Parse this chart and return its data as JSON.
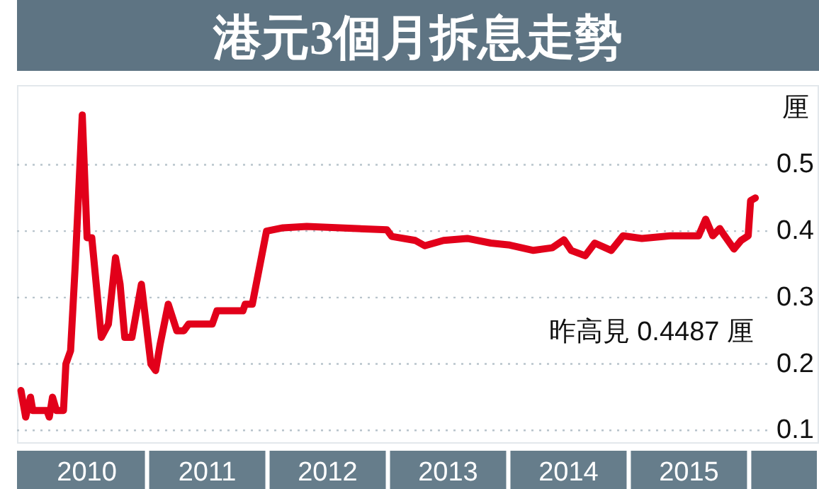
{
  "chart_data": {
    "type": "line",
    "title": "港元3個月拆息走勢",
    "ylabel": "厘",
    "annotations": [
      "昨高見 0.4487 厘"
    ],
    "xlim": [
      2009.92,
      2016.58
    ],
    "ylim": [
      0.08,
      0.62
    ],
    "xticks": [
      {
        "value": 2010.5,
        "label": "2010"
      },
      {
        "value": 2011.5,
        "label": "2011"
      },
      {
        "value": 2012.5,
        "label": "2012"
      },
      {
        "value": 2013.5,
        "label": "2013"
      },
      {
        "value": 2014.5,
        "label": "2014"
      },
      {
        "value": 2015.5,
        "label": "2015"
      }
    ],
    "yticks": [
      0.1,
      0.2,
      0.3,
      0.4,
      0.5
    ],
    "grid": "y",
    "marker": "none",
    "line_style": "solid",
    "series": [
      {
        "color": "#e2001a",
        "x": [
          2009.953,
          2009.992,
          2010.032,
          2010.051,
          2010.168,
          2010.188,
          2010.215,
          2010.247,
          2010.306,
          2010.326,
          2010.365,
          2010.404,
          2010.462,
          2010.502,
          2010.541,
          2010.62,
          2010.679,
          2010.738,
          2010.776,
          2010.815,
          2010.874,
          2010.953,
          2011.032,
          2011.071,
          2011.109,
          2011.176,
          2011.247,
          2011.306,
          2011.345,
          2011.541,
          2011.58,
          2011.796,
          2011.815,
          2011.874,
          2011.992,
          2012.129,
          2012.326,
          2012.992,
          2013.032,
          2013.227,
          2013.306,
          2013.462,
          2013.659,
          2013.855,
          2014.012,
          2014.208,
          2014.365,
          2014.462,
          2014.521,
          2014.639,
          2014.718,
          2014.855,
          2014.953,
          2015.109,
          2015.345,
          2015.58,
          2015.639,
          2015.698,
          2015.756,
          2015.796,
          2015.874,
          2015.933,
          2015.992,
          2016.012,
          2016.051
        ],
        "values": [
          0.16,
          0.12,
          0.15,
          0.13,
          0.13,
          0.12,
          0.15,
          0.13,
          0.13,
          0.2,
          0.22,
          0.35,
          0.575,
          0.39,
          0.39,
          0.24,
          0.26,
          0.36,
          0.32,
          0.24,
          0.24,
          0.32,
          0.2,
          0.19,
          0.23,
          0.29,
          0.25,
          0.25,
          0.26,
          0.26,
          0.28,
          0.28,
          0.29,
          0.29,
          0.4,
          0.405,
          0.407,
          0.402,
          0.392,
          0.386,
          0.378,
          0.386,
          0.389,
          0.382,
          0.379,
          0.371,
          0.375,
          0.387,
          0.371,
          0.363,
          0.382,
          0.371,
          0.393,
          0.389,
          0.393,
          0.393,
          0.418,
          0.393,
          0.404,
          0.393,
          0.373,
          0.386,
          0.393,
          0.446,
          0.45
        ]
      }
    ]
  }
}
